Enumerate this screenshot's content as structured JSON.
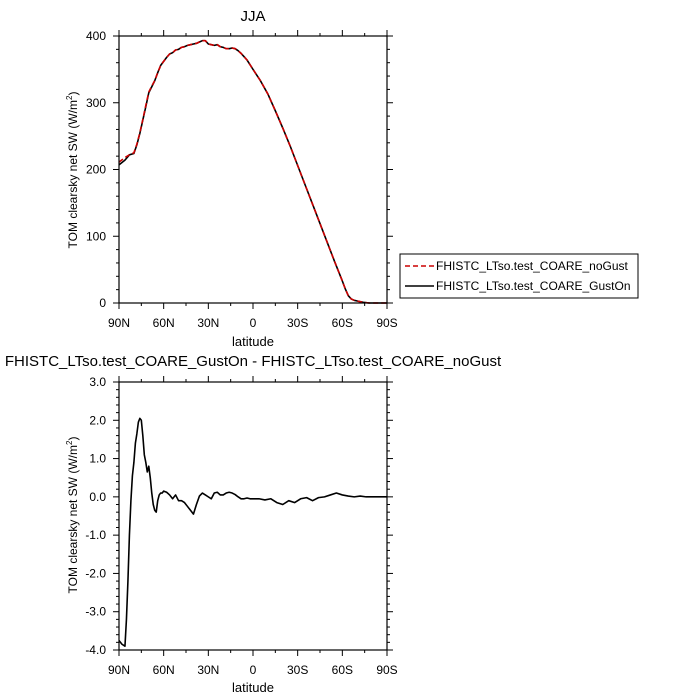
{
  "chart_data": [
    {
      "type": "line",
      "title": "JJA",
      "xlabel": "latitude",
      "ylabel": "TOM clearsky net SW (W/m",
      "ylabel_sup": "2",
      "ylabel_close": ")",
      "xlim": [
        90,
        -90
      ],
      "ylim": [
        0,
        400
      ],
      "xticks": [
        90,
        60,
        30,
        0,
        -30,
        -60,
        -90
      ],
      "xtick_labels": [
        "90N",
        "60N",
        "30N",
        "0",
        "30S",
        "60S",
        "90S"
      ],
      "yticks": [
        0,
        100,
        200,
        300,
        400
      ],
      "ytick_labels": [
        "0",
        "100",
        "200",
        "300",
        "400"
      ],
      "grid": false,
      "legend_position": "right",
      "x": [
        90,
        86,
        83,
        80,
        78,
        76,
        74,
        72,
        70,
        68,
        66,
        64,
        62,
        60,
        58,
        56,
        54,
        52,
        50,
        48,
        46,
        44,
        42,
        40,
        38,
        36,
        34,
        32,
        30,
        28,
        26,
        24,
        22,
        20,
        18,
        16,
        14,
        12,
        10,
        8,
        6,
        4,
        2,
        0,
        -5,
        -10,
        -15,
        -20,
        -25,
        -30,
        -35,
        -40,
        -45,
        -50,
        -55,
        -60,
        -62,
        -64,
        -66,
        -68,
        -70,
        -74,
        -78,
        -82,
        -86,
        -90
      ],
      "series": [
        {
          "name": "FHISTC_LTso.test_COARE_noGust",
          "color": "#cc0000",
          "dash": true,
          "values": [
            211,
            218,
            222,
            225,
            238,
            255,
            275,
            296,
            316,
            325,
            333,
            345,
            356,
            362,
            368,
            373,
            375,
            379,
            380,
            383,
            384,
            386,
            387,
            388,
            389,
            391,
            393,
            393,
            388,
            387,
            386,
            387,
            384,
            383,
            381,
            381,
            382,
            381,
            378,
            374,
            369,
            364,
            357,
            350,
            333,
            313,
            288,
            262,
            235,
            206,
            177,
            148,
            119,
            90,
            61,
            33,
            21,
            11,
            6,
            4,
            3,
            1,
            0,
            0,
            0,
            0
          ]
        },
        {
          "name": "FHISTC_LTso.test_COARE_GustOn",
          "color": "#000000",
          "dash": false,
          "values": [
            207,
            214,
            222,
            224,
            237,
            254,
            274,
            294,
            315,
            324,
            333,
            345,
            356,
            362,
            368,
            373,
            375,
            379,
            380,
            383,
            384,
            386,
            387,
            388,
            389,
            391,
            393,
            393,
            388,
            387,
            386,
            387,
            384,
            383,
            381,
            381,
            382,
            381,
            378,
            374,
            369,
            364,
            357,
            350,
            333,
            313,
            288,
            262,
            235,
            206,
            177,
            148,
            119,
            90,
            61,
            33,
            21,
            11,
            6,
            4,
            3,
            1,
            0,
            0,
            0,
            0
          ]
        }
      ]
    },
    {
      "type": "line",
      "title": "FHISTC_LTso.test_COARE_GustOn - FHISTC_LTso.test_COARE_noGust",
      "xlabel": "latitude",
      "ylabel": "TOM clearsky net SW (W/m",
      "ylabel_sup": "2",
      "ylabel_close": ")",
      "xlim": [
        90,
        -90
      ],
      "ylim": [
        -4,
        3
      ],
      "xticks": [
        90,
        60,
        30,
        0,
        -30,
        -60,
        -90
      ],
      "xtick_labels": [
        "90N",
        "60N",
        "30N",
        "0",
        "30S",
        "60S",
        "90S"
      ],
      "yticks": [
        -4,
        -3,
        -2,
        -1,
        0,
        1,
        2,
        3
      ],
      "ytick_labels": [
        "-4.0",
        "-3.0",
        "-2.0",
        "-1.0",
        "0.0",
        "1.0",
        "2.0",
        "3.0"
      ],
      "grid": false,
      "x": [
        90,
        88,
        86,
        85,
        84,
        83,
        82,
        81,
        80,
        79,
        78,
        77,
        76,
        75,
        74,
        73,
        72,
        71,
        70,
        69,
        68,
        67,
        66,
        65,
        64,
        63,
        62,
        61,
        60,
        58,
        56,
        54,
        52,
        50,
        48,
        46,
        44,
        42,
        40,
        38,
        36,
        34,
        32,
        30,
        28,
        26,
        24,
        22,
        20,
        18,
        16,
        14,
        12,
        10,
        8,
        6,
        4,
        2,
        0,
        -4,
        -8,
        -12,
        -16,
        -20,
        -24,
        -28,
        -32,
        -36,
        -40,
        -44,
        -48,
        -52,
        -56,
        -60,
        -64,
        -68,
        -72,
        -76,
        -80,
        -85,
        -90
      ],
      "series": [
        {
          "name": "FHISTC_LTso.test_COARE_GustOn - FHISTC_LTso.test_COARE_noGust",
          "color": "#000000",
          "dash": false,
          "values": [
            -3.75,
            -3.85,
            -3.9,
            -3.2,
            -2.2,
            -1.0,
            -0.1,
            0.55,
            0.9,
            1.4,
            1.65,
            1.95,
            2.05,
            2.0,
            1.6,
            1.1,
            0.9,
            0.65,
            0.8,
            0.5,
            0.1,
            -0.2,
            -0.35,
            -0.4,
            -0.1,
            0.05,
            0.1,
            0.1,
            0.15,
            0.12,
            0.05,
            -0.05,
            0.05,
            -0.1,
            -0.1,
            -0.15,
            -0.25,
            -0.35,
            -0.45,
            -0.2,
            0.02,
            0.1,
            0.05,
            0.0,
            -0.05,
            0.1,
            0.12,
            0.05,
            0.05,
            0.1,
            0.12,
            0.1,
            0.06,
            0.0,
            -0.05,
            -0.05,
            -0.03,
            -0.05,
            -0.05,
            -0.05,
            -0.08,
            -0.05,
            -0.15,
            -0.2,
            -0.1,
            -0.15,
            -0.05,
            -0.02,
            -0.1,
            -0.02,
            0.0,
            0.05,
            0.1,
            0.05,
            0.02,
            0.0,
            0.02,
            0.0,
            0.0,
            0.0,
            0.0
          ]
        }
      ]
    }
  ]
}
